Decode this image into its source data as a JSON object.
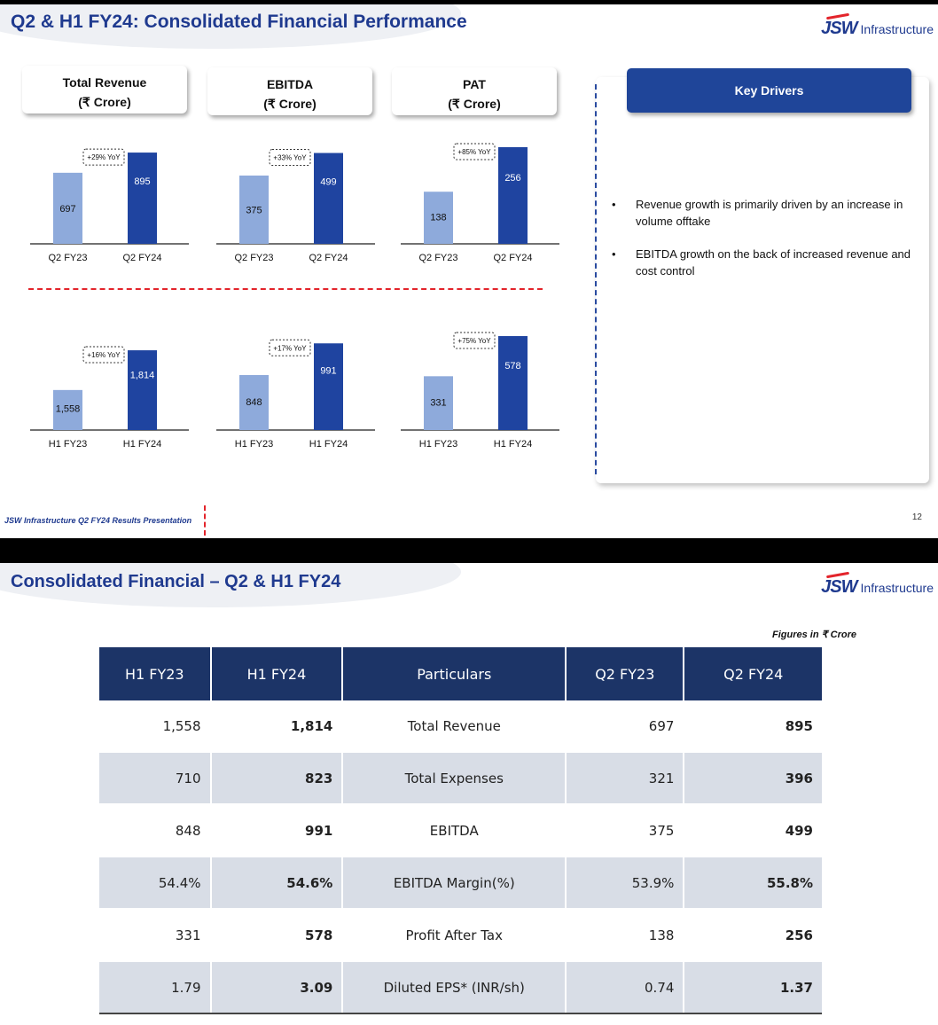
{
  "slide1": {
    "title": "Q2 & H1 FY24: Consolidated Financial Performance",
    "logo": {
      "mark": "JSW",
      "text": "Infrastructure"
    },
    "metrics": [
      {
        "line1": "Total Revenue",
        "line2": "(₹ Crore)"
      },
      {
        "line1": "EBITDA",
        "line2": "(₹ Crore)"
      },
      {
        "line1": "PAT",
        "line2": "(₹ Crore)"
      }
    ],
    "key_drivers": {
      "heading": "Key Drivers",
      "bullets": [
        "Revenue growth is primarily driven by an increase in volume offtake",
        "EBITDA growth on the back of increased revenue and cost control"
      ]
    },
    "footer": "JSW Infrastructure Q2 FY24 Results Presentation",
    "page_number": "12"
  },
  "chart_data": [
    {
      "type": "bar",
      "title": "Total Revenue Q2",
      "categories": [
        "Q2 FY23",
        "Q2 FY24"
      ],
      "values": [
        697,
        895
      ],
      "labels": [
        "697",
        "895"
      ],
      "yoy": "+29% YoY",
      "ylim": [
        0,
        1000
      ]
    },
    {
      "type": "bar",
      "title": "EBITDA Q2",
      "categories": [
        "Q2 FY23",
        "Q2 FY24"
      ],
      "values": [
        375,
        499
      ],
      "labels": [
        "375",
        "499"
      ],
      "yoy": "+33% YoY",
      "ylim": [
        0,
        560
      ]
    },
    {
      "type": "bar",
      "title": "PAT Q2",
      "categories": [
        "Q2 FY23",
        "Q2 FY24"
      ],
      "values": [
        138,
        256
      ],
      "labels": [
        "138",
        "256"
      ],
      "yoy": "+85% YoY",
      "ylim": [
        0,
        270
      ]
    },
    {
      "type": "bar",
      "title": "Total Revenue H1",
      "categories": [
        "H1 FY23",
        "H1 FY24"
      ],
      "values": [
        1558,
        1814
      ],
      "labels": [
        "1,558",
        "1,814"
      ],
      "yoy": "+16% YoY",
      "ylim": [
        0,
        1900
      ],
      "ybase": 1300
    },
    {
      "type": "bar",
      "title": "EBITDA H1",
      "categories": [
        "H1 FY23",
        "H1 FY24"
      ],
      "values": [
        848,
        991
      ],
      "labels": [
        "848",
        "991"
      ],
      "yoy": "+17% YoY",
      "ylim": [
        0,
        1040
      ],
      "ybase": 600
    },
    {
      "type": "bar",
      "title": "PAT H1",
      "categories": [
        "H1 FY23",
        "H1 FY24"
      ],
      "values": [
        331,
        578
      ],
      "labels": [
        "331",
        "578"
      ],
      "yoy": "+75% YoY",
      "ylim": [
        0,
        600
      ]
    }
  ],
  "colors": {
    "light_bar": "#8eaadb",
    "dark_bar": "#1f44a0",
    "navy": "#1c3467",
    "accent_red": "#e3242b"
  },
  "slide2": {
    "title": "Consolidated Financial – Q2 & H1 FY24",
    "logo": {
      "mark": "JSW",
      "text": "Infrastructure"
    },
    "figures_note": "Figures in ₹ Crore",
    "table": {
      "headers": [
        "H1 FY23",
        "H1 FY24",
        "Particulars",
        "Q2 FY23",
        "Q2 FY24"
      ],
      "rows": [
        [
          "1,558",
          "1,814",
          "Total Revenue",
          "697",
          "895"
        ],
        [
          "710",
          "823",
          "Total Expenses",
          "321",
          "396"
        ],
        [
          "848",
          "991",
          "EBITDA",
          "375",
          "499"
        ],
        [
          "54.4%",
          "54.6%",
          "EBITDA Margin(%)",
          "53.9%",
          "55.8%"
        ],
        [
          "331",
          "578",
          "Profit After Tax",
          "138",
          "256"
        ],
        [
          "1.79",
          "3.09",
          "Diluted EPS*  (INR/sh)",
          "0.74",
          "1.37"
        ]
      ]
    }
  }
}
